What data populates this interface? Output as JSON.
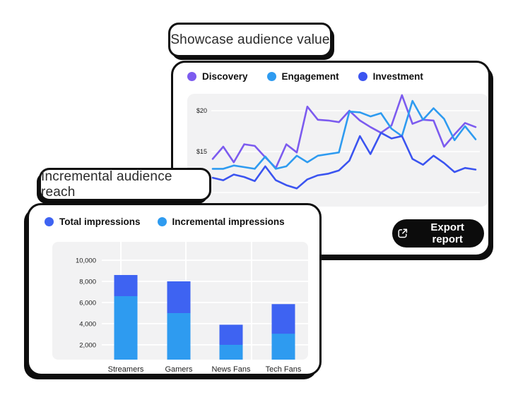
{
  "showcase_card": {
    "title": "Showcase audience value",
    "export_button": {
      "label": "Export report",
      "icon": "export-external-link-icon",
      "bg": "#0c0c0c",
      "text_color": "#ffffff"
    }
  },
  "reach_card": {
    "title": "Incremental audience reach"
  },
  "colors": {
    "discovery_purple": "#7C5BEF",
    "engagement_cyan": "#2E9BF0",
    "investment_blue": "#3B54F0",
    "total_blue": "#3E63F2",
    "incremental_cyan": "#2E9BF0",
    "plot_background": "#f2f2f3",
    "card_border_black": "#101010"
  },
  "chart_data": [
    {
      "type": "line",
      "title": "Showcase audience value",
      "xlabel": "",
      "ylabel": "",
      "ylim": [
        10,
        22.5
      ],
      "grid": "horizontal-only",
      "gridline_values": [
        20,
        15,
        10
      ],
      "yticks": [
        {
          "value": 20,
          "label": "$20"
        },
        {
          "value": 15,
          "label": "$15"
        }
      ],
      "legend_position": "top-left",
      "series": [
        {
          "name": "Discovery",
          "color": "#7C5BEF",
          "values": [
            14.1,
            15.6,
            13.7,
            15.9,
            15.7,
            14.3,
            13.0,
            15.9,
            14.9,
            20.5,
            18.9,
            18.8,
            18.6,
            20.0,
            18.8,
            18.0,
            17.3,
            18.2,
            21.9,
            18.4,
            18.9,
            18.8,
            15.6,
            17.1,
            18.5,
            18.0
          ]
        },
        {
          "name": "Engagement",
          "color": "#2E9BF0",
          "values": [
            12.9,
            12.9,
            13.3,
            13.1,
            12.9,
            14.4,
            12.9,
            13.2,
            14.5,
            13.7,
            14.5,
            14.7,
            14.9,
            19.9,
            19.8,
            19.3,
            19.7,
            17.8,
            16.9,
            21.2,
            18.9,
            20.3,
            19.0,
            16.4,
            18.1,
            16.5
          ]
        },
        {
          "name": "Investment",
          "color": "#3B54F0",
          "values": [
            11.8,
            11.5,
            12.2,
            11.9,
            11.4,
            13.2,
            11.5,
            10.9,
            10.5,
            11.6,
            12.1,
            12.3,
            12.7,
            13.9,
            16.9,
            14.7,
            17.3,
            16.6,
            16.9,
            14.1,
            13.4,
            14.5,
            13.6,
            12.5,
            13.0,
            12.8
          ]
        }
      ]
    },
    {
      "type": "stacked-bar",
      "title": "Incremental audience reach",
      "xlabel": "",
      "ylabel": "",
      "categories": [
        "Streamers",
        "Gamers",
        "News Fans",
        "Tech Fans"
      ],
      "ylim": [
        0,
        11000
      ],
      "grid": "both",
      "gridline_values": [
        10000,
        8000,
        6000,
        4000,
        2000
      ],
      "yticks": [
        {
          "value": 10000,
          "label": "10,000"
        },
        {
          "value": 8000,
          "label": "8,000"
        },
        {
          "value": 6000,
          "label": "6,000"
        },
        {
          "value": 4000,
          "label": "4,000"
        },
        {
          "value": 2000,
          "label": "2,000"
        }
      ],
      "legend_position": "top-left",
      "series": [
        {
          "name": "Total impressions",
          "color": "#3E63F2",
          "values": [
            8600,
            8000,
            3900,
            5850
          ],
          "note": "total bar height; blue segment is total minus incremental"
        },
        {
          "name": "Incremental impressions",
          "color": "#2E9BF0",
          "values": [
            6600,
            5000,
            2000,
            3050
          ]
        }
      ]
    }
  ]
}
